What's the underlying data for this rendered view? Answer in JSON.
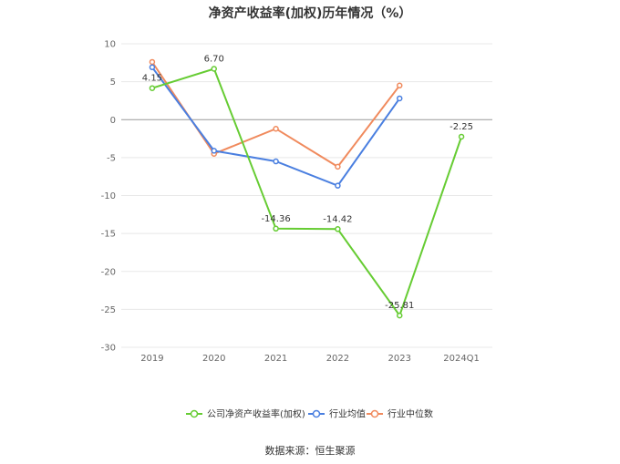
{
  "title": "净资产收益率(加权)历年情况（%）",
  "source": "数据来源：恒生聚源",
  "chart_data": {
    "type": "line",
    "title": "净资产收益率(加权)历年情况（%）",
    "categories": [
      "2019",
      "2020",
      "2021",
      "2022",
      "2023",
      "2024Q1"
    ],
    "ylim": [
      -30,
      10
    ],
    "yticks": [
      10,
      5,
      0,
      -5,
      -10,
      -15,
      -20,
      -25,
      -30
    ],
    "grid": true,
    "legend_position": "bottom-center",
    "series": [
      {
        "name": "公司净资产收益率(加权)",
        "color": "#66cc33",
        "values": [
          4.15,
          6.7,
          -14.36,
          -14.42,
          -25.81,
          -2.25
        ],
        "labels": [
          "4.15",
          "6.70",
          "-14.36",
          "-14.42",
          "-25.81",
          "-2.25"
        ]
      },
      {
        "name": "行业均值",
        "color": "#4a7fe0",
        "values": [
          6.9,
          -4.1,
          -5.5,
          -8.7,
          2.8,
          null
        ]
      },
      {
        "name": "行业中位数",
        "color": "#f08a5d",
        "values": [
          7.6,
          -4.5,
          -1.2,
          -6.2,
          4.5,
          null
        ]
      }
    ]
  }
}
